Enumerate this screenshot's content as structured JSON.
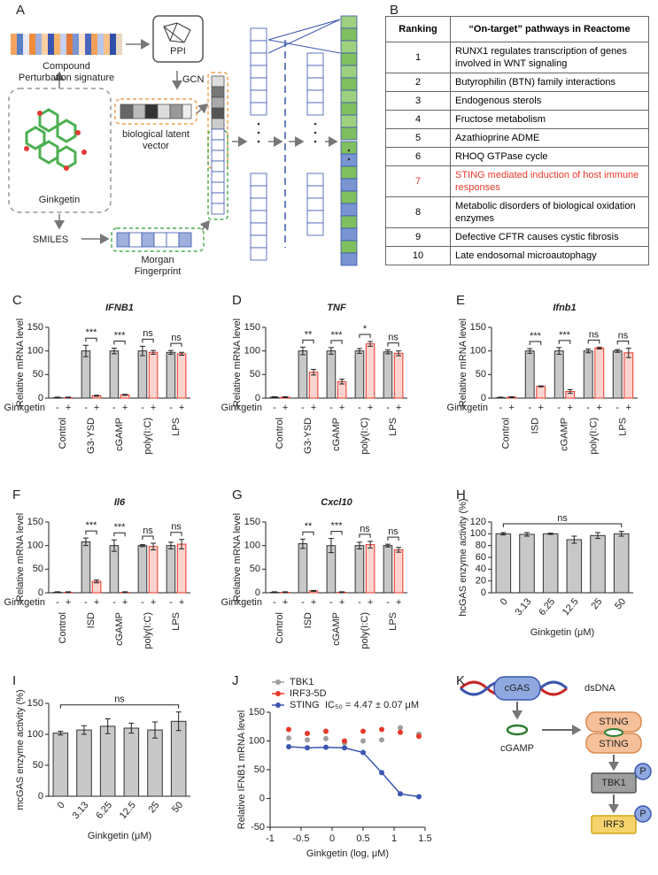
{
  "panel_labels": [
    "A",
    "B",
    "C",
    "D",
    "E",
    "F",
    "G",
    "H",
    "I",
    "J",
    "K"
  ],
  "diagram_a": {
    "signature": [
      "Compound",
      "Perturbation signature"
    ],
    "ppi": "PPI",
    "gcn": "GCN",
    "latent": [
      "biological latent",
      "vector"
    ],
    "compound": "Ginkgetin",
    "smiles": "SMILES",
    "fingerprint": [
      "Morgan",
      "Fingerprint"
    ]
  },
  "table_b": {
    "header": [
      "Ranking",
      "“On-target” pathways in Reactome"
    ],
    "rows": [
      {
        "rank": 1,
        "pathway": "RUNX1 regulates transcription of genes involved in WNT signaling"
      },
      {
        "rank": 2,
        "pathway": "Butyrophilin (BTN) family interactions"
      },
      {
        "rank": 3,
        "pathway": "Endogenous sterols"
      },
      {
        "rank": 4,
        "pathway": "Fructose metabolism"
      },
      {
        "rank": 5,
        "pathway": "Azathioprine ADME"
      },
      {
        "rank": 6,
        "pathway": "RHOQ GTPase cycle"
      },
      {
        "rank": 7,
        "pathway": "STING mediated induction of host immune responses",
        "color": "#e8392b"
      },
      {
        "rank": 8,
        "pathway": "Metabolic disorders of biological oxidation enzymes"
      },
      {
        "rank": 9,
        "pathway": "Defective CFTR causes cystic fibrosis"
      },
      {
        "rank": 10,
        "pathway": "Late endosomal microautophagy"
      }
    ]
  },
  "chart_data": [
    {
      "type": "bar",
      "title": "IFNB1",
      "ylabel": "Relative mRNA level",
      "xlabel": "Ginkgetin",
      "categories": [
        "Control",
        "G3-YSD",
        "cGAMP",
        "poly(I:C)",
        "LPS"
      ],
      "series": [
        {
          "name": "-",
          "color": "#c8c8c8",
          "edgecolor": "#333333",
          "values": [
            1,
            100,
            100,
            100,
            97
          ],
          "errors": [
            1,
            12,
            6,
            10,
            4
          ]
        },
        {
          "name": "+",
          "color": "#fbd3cf",
          "edgecolor": "#e8392b",
          "values": [
            1,
            5,
            7,
            97,
            94
          ],
          "errors": [
            1,
            1,
            1,
            4,
            3
          ]
        }
      ],
      "ylim": [
        0,
        150
      ],
      "yticks": [
        0,
        50,
        100,
        150
      ],
      "significance": [
        null,
        "***",
        "***",
        "ns",
        "ns"
      ]
    },
    {
      "type": "bar",
      "title": "TNF",
      "ylabel": "Relative mRNA level",
      "xlabel": "Ginkgetin",
      "categories": [
        "Control",
        "G3-YSD",
        "cGAMP",
        "poly(I:C)",
        "LPS"
      ],
      "series": [
        {
          "name": "-",
          "color": "#c8c8c8",
          "edgecolor": "#333333",
          "values": [
            2,
            100,
            100,
            100,
            98
          ],
          "errors": [
            1,
            8,
            7,
            5,
            4
          ]
        },
        {
          "name": "+",
          "color": "#fbd3cf",
          "edgecolor": "#e8392b",
          "values": [
            2,
            55,
            35,
            115,
            95
          ],
          "errors": [
            1,
            6,
            5,
            5,
            5
          ]
        }
      ],
      "ylim": [
        0,
        150
      ],
      "yticks": [
        0,
        50,
        100,
        150
      ],
      "significance": [
        null,
        "**",
        "***",
        "*",
        "ns"
      ]
    },
    {
      "type": "bar",
      "title": "Ifnb1",
      "ylabel": "Relative mRNA level",
      "xlabel": "Ginkgetin",
      "categories": [
        "Control",
        "ISD",
        "cGAMP",
        "poly(I:C)",
        "LPS"
      ],
      "series": [
        {
          "name": "-",
          "color": "#c8c8c8",
          "edgecolor": "#333333",
          "values": [
            1,
            100,
            100,
            100,
            100
          ],
          "errors": [
            1,
            5,
            7,
            4,
            3
          ]
        },
        {
          "name": "+",
          "color": "#fbd3cf",
          "edgecolor": "#e8392b",
          "values": [
            2,
            25,
            14,
            106,
            96
          ],
          "errors": [
            1,
            1,
            4,
            2,
            10
          ]
        }
      ],
      "ylim": [
        0,
        150
      ],
      "yticks": [
        0,
        50,
        100,
        150
      ],
      "significance": [
        null,
        "***",
        "***",
        "ns",
        "ns"
      ]
    },
    {
      "type": "bar",
      "title": "Il6",
      "ylabel": "Relative mRNA level",
      "xlabel": "Ginkgetin",
      "categories": [
        "Control",
        "ISD",
        "cGAMP",
        "poly(I:C)",
        "LPS"
      ],
      "series": [
        {
          "name": "-",
          "color": "#c8c8c8",
          "edgecolor": "#333333",
          "values": [
            1,
            108,
            100,
            100,
            100
          ],
          "errors": [
            1,
            8,
            12,
            2,
            7
          ]
        },
        {
          "name": "+",
          "color": "#fbd3cf",
          "edgecolor": "#e8392b",
          "values": [
            1,
            24,
            1,
            98,
            103
          ],
          "errors": [
            1,
            3,
            1,
            7,
            10
          ]
        }
      ],
      "ylim": [
        0,
        150
      ],
      "yticks": [
        0,
        50,
        100,
        150
      ],
      "significance": [
        null,
        "***",
        "***",
        "ns",
        "ns"
      ]
    },
    {
      "type": "bar",
      "title": "Cxcl10",
      "ylabel": "Relative mRNA level",
      "xlabel": "Ginkgetin",
      "categories": [
        "Control",
        "ISD",
        "cGAMP",
        "poly(I:C)",
        "LPS"
      ],
      "series": [
        {
          "name": "-",
          "color": "#c8c8c8",
          "edgecolor": "#333333",
          "values": [
            1,
            104,
            100,
            100,
            100
          ],
          "errors": [
            1,
            10,
            15,
            7,
            3
          ]
        },
        {
          "name": "+",
          "color": "#fbd3cf",
          "edgecolor": "#e8392b",
          "values": [
            1,
            4,
            1,
            102,
            91
          ],
          "errors": [
            1,
            1,
            1,
            7,
            5
          ]
        }
      ],
      "ylim": [
        0,
        150
      ],
      "yticks": [
        0,
        50,
        100,
        150
      ],
      "significance": [
        null,
        "**",
        "***",
        "ns",
        "ns"
      ]
    },
    {
      "type": "bar",
      "ylabel": "hcGAS enzyme activity (%)",
      "xlabel": "Ginkgetin (μM)",
      "categories": [
        "0",
        "3.13",
        "6.25",
        "12.5",
        "25",
        "50"
      ],
      "values": [
        100,
        99,
        100,
        90,
        97,
        100
      ],
      "errors": [
        2,
        3,
        1,
        6,
        5,
        4
      ],
      "color": "#c8c8c8",
      "edgecolor": "#333333",
      "ylim": [
        0,
        120
      ],
      "yticks": [
        0,
        20,
        40,
        60,
        80,
        100,
        120
      ],
      "significance": "ns"
    },
    {
      "type": "bar",
      "ylabel": "mcGAS enzyme activity (%)",
      "xlabel": "Ginkgetin (μM)",
      "categories": [
        "0",
        "3.13",
        "6.25",
        "12.5",
        "25",
        "50"
      ],
      "values": [
        102,
        107,
        113,
        110,
        107,
        121
      ],
      "errors": [
        3,
        7,
        12,
        8,
        13,
        15
      ],
      "color": "#c8c8c8",
      "edgecolor": "#333333",
      "ylim": [
        0,
        150
      ],
      "yticks": [
        0,
        50,
        100,
        150
      ],
      "significance": "ns"
    },
    {
      "type": "scatter",
      "ylabel": "Relative IFNB1 mRNA level",
      "xlabel": "Ginkgetin (log, μM)",
      "x": [
        -0.7,
        -0.4,
        -0.1,
        0.2,
        0.5,
        0.8,
        1.1,
        1.4
      ],
      "series": [
        {
          "name": "TBK1",
          "color": "#9e9e9e",
          "values": [
            105,
            102,
            104,
            97,
            100,
            102,
            123,
            112
          ]
        },
        {
          "name": "IRF3-5D",
          "color": "#e8392b",
          "values": [
            120,
            113,
            117,
            100,
            117,
            120,
            115,
            108
          ]
        },
        {
          "name": "STING",
          "color": "#3a56b0",
          "line": true,
          "values": [
            90,
            88,
            89,
            88,
            80,
            45,
            8,
            3
          ]
        }
      ],
      "annotation": "IC₅₀ = 4.47 ± 0.07 μM",
      "xlim": [
        -1,
        1.5
      ],
      "xticks": [
        -1,
        -0.5,
        0,
        0.5,
        1,
        1.5
      ],
      "ylim": [
        -50,
        150
      ],
      "yticks": [
        -50,
        0,
        50,
        100,
        150
      ]
    }
  ],
  "diagram_k": {
    "cgas": "cGAS",
    "dsdna": "dsDNA",
    "cgamp": "cGAMP",
    "sting": [
      "STING",
      "STING"
    ],
    "tbk1": "TBK1",
    "irf3": "IRF3",
    "p": [
      "P",
      "P"
    ]
  }
}
